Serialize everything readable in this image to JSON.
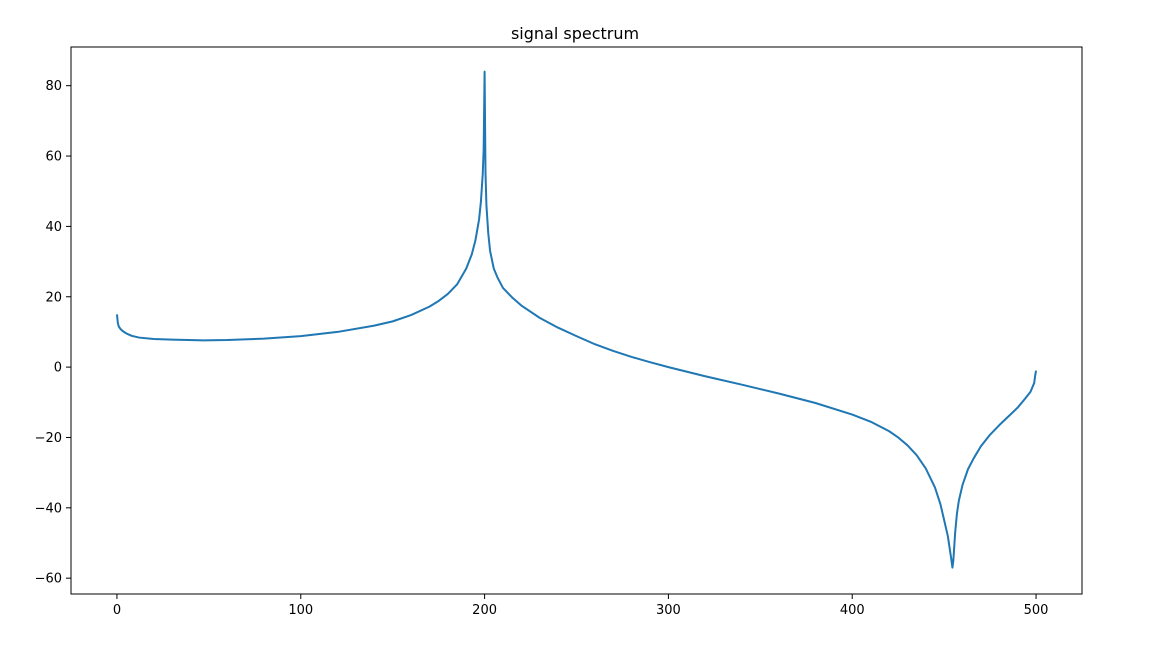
{
  "chart_data": {
    "type": "line",
    "title": "signal spectrum",
    "xlabel": "",
    "ylabel": "",
    "xlim": [
      -25,
      525
    ],
    "ylim": [
      -64.5,
      91
    ],
    "x_ticks": [
      0,
      100,
      200,
      300,
      400,
      500
    ],
    "x_tick_labels": [
      "0",
      "100",
      "200",
      "300",
      "400",
      "500"
    ],
    "y_ticks": [
      80,
      60,
      40,
      20,
      0,
      -20,
      -40,
      -60
    ],
    "y_tick_labels": [
      "80",
      "60",
      "40",
      "20",
      "0",
      "−20",
      "−40",
      "−60"
    ],
    "grid": false,
    "legend": "none",
    "series": [
      {
        "color": "#1f77b4",
        "x": [
          0,
          0.5,
          1,
          2,
          3,
          5,
          8,
          12,
          20,
          30,
          47,
          60,
          80,
          100,
          120,
          140,
          150,
          160,
          170,
          175,
          180,
          185,
          190,
          193,
          195,
          197,
          198,
          199,
          199.5,
          200,
          200.5,
          201,
          202,
          203,
          205,
          207,
          210,
          215,
          220,
          230,
          240,
          250,
          260,
          270,
          280,
          290,
          300,
          320,
          340,
          360,
          380,
          400,
          410,
          420,
          425,
          430,
          435,
          440,
          445,
          448,
          450,
          452,
          453,
          454,
          454.5,
          455,
          455.5,
          456,
          457,
          458,
          460,
          463,
          466,
          470,
          475,
          480,
          485,
          490,
          494,
          497,
          499,
          499.5,
          500
        ],
        "y": [
          15,
          12.5,
          11.5,
          10.8,
          10.3,
          9.6,
          8.9,
          8.4,
          8.0,
          7.8,
          7.6,
          7.7,
          8.1,
          8.8,
          10.0,
          11.8,
          13.0,
          14.8,
          17.2,
          18.8,
          20.8,
          23.5,
          28,
          32,
          36,
          42,
          47,
          55,
          62,
          84,
          55,
          46,
          38,
          33,
          28,
          25.5,
          22.5,
          19.8,
          17.5,
          14.0,
          11.2,
          8.8,
          6.5,
          4.6,
          2.9,
          1.4,
          0,
          -2.6,
          -5.0,
          -7.5,
          -10.2,
          -13.5,
          -15.5,
          -18.2,
          -20.0,
          -22.2,
          -25.0,
          -28.8,
          -34.2,
          -39.0,
          -43.5,
          -48.0,
          -51.5,
          -55.0,
          -57,
          -55.0,
          -51.0,
          -47.0,
          -41.5,
          -38.0,
          -33.5,
          -29.0,
          -26.0,
          -22.5,
          -19.2,
          -16.5,
          -14.0,
          -11.5,
          -9.0,
          -7.0,
          -4.5,
          -2.5,
          -1
        ]
      }
    ]
  }
}
